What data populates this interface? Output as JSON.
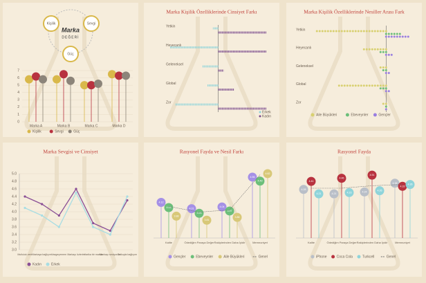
{
  "diagram": {
    "nodes": [
      "Kişilik",
      "Sevgi",
      "Güç"
    ],
    "center": "Marka",
    "center_sub": "DEĞERİ"
  },
  "chart_data": [
    {
      "type": "lollipop",
      "categories": [
        "Marka A",
        "Marka B",
        "Marka C",
        "Marka D"
      ],
      "ylim": [
        0,
        7
      ],
      "yticks": [
        0,
        1,
        2,
        3,
        4,
        5,
        6,
        7
      ],
      "grid": true,
      "series": [
        {
          "name": "Kişilik",
          "color": "#d9b84a",
          "values": [
            5.8,
            5.8,
            5.0,
            6.5
          ]
        },
        {
          "name": "Sevgi",
          "color": "#b8323f",
          "values": [
            6.2,
            6.5,
            5.0,
            6.3
          ]
        },
        {
          "name": "Güç",
          "color": "#8c8479",
          "values": [
            5.8,
            5.6,
            5.2,
            6.3
          ]
        }
      ]
    },
    {
      "type": "diverging",
      "title": "Marka Kişilik Özelliklerinde Cinsiyet Farkı",
      "categories": [
        "Yetkin",
        "Heyecanlı",
        "Geleneksel",
        "Global",
        "Zor"
      ],
      "xlim": [
        -10,
        10
      ],
      "series": [
        {
          "name": "Erkek",
          "color": "#8fd4da",
          "side": "left",
          "values": [
            1,
            9,
            3,
            2,
            8
          ]
        },
        {
          "name": "Kadın",
          "color": "#7a4a8c",
          "side": "right",
          "values": [
            9,
            9,
            1,
            3,
            9
          ]
        }
      ]
    },
    {
      "type": "dotbar",
      "title": "Marka Kişilik Özelliklerinde Nesiller Arası Fark",
      "categories": [
        "Yetkin",
        "Heyecanlı",
        "Geleneksel",
        "Global",
        "Zor"
      ],
      "xlim": [
        -10,
        4
      ],
      "series": [
        {
          "name": "Aile Büyükleri",
          "color": "#d8d070",
          "values": [
            -9,
            -3,
            -1,
            -6,
            -0.5
          ]
        },
        {
          "name": "Ebeveynler",
          "color": "#6cbf7a",
          "values": [
            2,
            -1,
            -0.5,
            -1,
            0.3
          ]
        },
        {
          "name": "Gençler",
          "color": "#9a7fe0",
          "values": [
            3,
            1,
            0.5,
            0.5,
            0.3
          ]
        }
      ]
    },
    {
      "type": "line",
      "title": "Marka Sevgisi ve Cinsiyet",
      "categories": [
        "Mutluluk verir",
        "Markaya bağlıyım",
        "Vazgeçemem",
        "Markayı özlerim",
        "Harika bir marka",
        "Markayı seviyorum",
        "Tutkuyla bağlıyım"
      ],
      "ylim": [
        3,
        5
      ],
      "yticks": [
        {
          "value": 3,
          "label": "3.0"
        },
        3.2,
        3.4,
        3.6,
        3.8,
        {
          "value": 4,
          "label": "4.0"
        },
        4.2,
        4.4,
        4.6,
        4.8,
        {
          "value": 5,
          "label": "5.0"
        }
      ],
      "grid": true,
      "series": [
        {
          "name": "Kadın",
          "color": "#8a4f96",
          "values": [
            4.4,
            4.2,
            3.9,
            4.6,
            3.7,
            3.5,
            4.3
          ]
        },
        {
          "name": "Erkek",
          "color": "#a8dde3",
          "values": [
            4.1,
            3.9,
            3.6,
            4.5,
            3.6,
            3.4,
            4.4
          ]
        }
      ]
    },
    {
      "type": "bubble",
      "title": "Rasyonel Fayda ve Nesil Farkı",
      "categories": [
        "Kalite",
        "Ödediğim Paraya Değer",
        "Rakiplerinden Daha İyidir",
        "Memnuniyet"
      ],
      "ylim": [
        3.5,
        4.8
      ],
      "series": [
        {
          "name": "Gençler",
          "color": "#a590e6",
          "values": [
            4.12,
            4.01,
            4.04,
            4.56
          ]
        },
        {
          "name": "Ebeveynler",
          "color": "#6cbf7a",
          "values": [
            4.03,
            3.93,
            3.97,
            4.49
          ]
        },
        {
          "name": "Aile Büyükleri",
          "color": "#d8c878",
          "values": [
            3.88,
            3.81,
            3.86,
            4.62
          ]
        }
      ],
      "line": {
        "name": "Genel",
        "color": "#6e6e6e",
        "values": [
          4.05,
          3.95,
          3.99,
          4.6
        ]
      }
    },
    {
      "type": "bubble",
      "title": "Rasyonel Fayda",
      "categories": [
        "Kalite",
        "Ödediğim Paraya Değer",
        "Rakiplerinden Daha İyidir",
        "Memnuniyet"
      ],
      "ylim": [
        3.5,
        4.7
      ],
      "series": [
        {
          "name": "iPhone",
          "color": "#b9bfc8",
          "values": [
            4.28,
            4.21,
            4.24,
            4.38
          ]
        },
        {
          "name": "Coca Cola",
          "color": "#b8323f",
          "values": [
            4.41,
            4.46,
            4.51,
            4.33
          ]
        },
        {
          "name": "Turkcell",
          "color": "#8fd4da",
          "values": [
            4.21,
            4.23,
            4.26,
            4.36
          ]
        }
      ],
      "line": {
        "name": "Genel",
        "color": "#6e6e6e",
        "values": [
          4.3,
          4.3,
          4.34,
          4.36
        ]
      }
    }
  ]
}
